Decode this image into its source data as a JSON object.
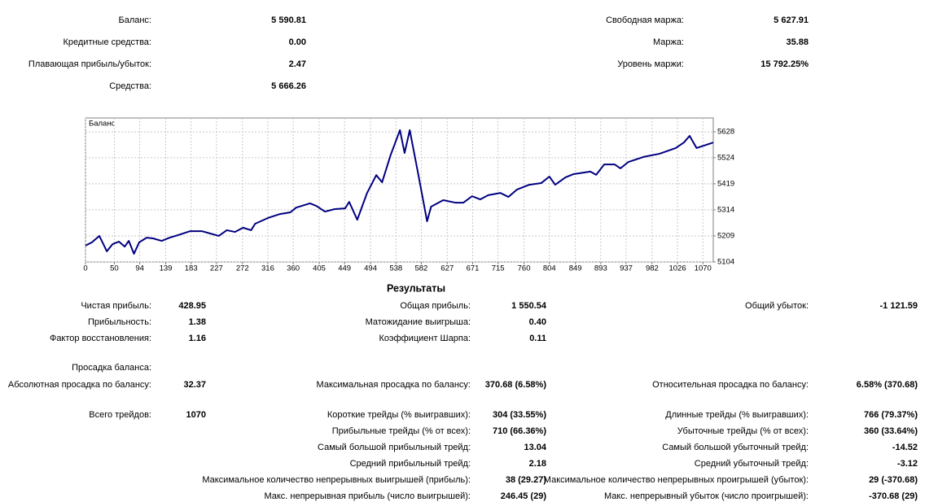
{
  "summary": {
    "left": [
      {
        "label": "Баланс:",
        "value": "5 590.81"
      },
      {
        "label": "Кредитные средства:",
        "value": "0.00"
      },
      {
        "label": "Плавающая прибыль/убыток:",
        "value": "2.47"
      },
      {
        "label": "Средства:",
        "value": "5 666.26"
      }
    ],
    "right": [
      {
        "label": "Свободная маржа:",
        "value": "5 627.91"
      },
      {
        "label": "Маржа:",
        "value": "35.88"
      },
      {
        "label": "Уровень маржи:",
        "value": "15 792.25%"
      }
    ]
  },
  "chart_data": {
    "type": "line",
    "title": "Баланс",
    "x": [
      0,
      11,
      24,
      37,
      47,
      58,
      68,
      75,
      84,
      93,
      106,
      117,
      132,
      146,
      160,
      181,
      202,
      231,
      245,
      259,
      273,
      287,
      294,
      316,
      337,
      355,
      365,
      389,
      400,
      415,
      432,
      450,
      457,
      471,
      488,
      504,
      514,
      529,
      545,
      553,
      562,
      577,
      592,
      599,
      620,
      641,
      655,
      670,
      684,
      698,
      719,
      733,
      748,
      769,
      790,
      804,
      814,
      832,
      846,
      875,
      885,
      899,
      917,
      927,
      941,
      967,
      995,
      1023,
      1037,
      1047,
      1059,
      1088
    ],
    "series": [
      {
        "name": "Баланс",
        "color": "#000080",
        "values": [
          5170,
          5183,
          5209,
          5147,
          5176,
          5186,
          5166,
          5189,
          5137,
          5183,
          5202,
          5199,
          5189,
          5202,
          5212,
          5228,
          5228,
          5209,
          5232,
          5225,
          5242,
          5232,
          5258,
          5281,
          5297,
          5304,
          5323,
          5340,
          5330,
          5307,
          5317,
          5320,
          5346,
          5274,
          5382,
          5454,
          5425,
          5536,
          5635,
          5543,
          5635,
          5454,
          5268,
          5327,
          5353,
          5343,
          5343,
          5369,
          5356,
          5373,
          5382,
          5366,
          5396,
          5415,
          5422,
          5448,
          5415,
          5445,
          5458,
          5468,
          5455,
          5497,
          5497,
          5481,
          5507,
          5527,
          5540,
          5563,
          5585,
          5612,
          5563,
          5585
        ]
      }
    ],
    "xlim": [
      0,
      1088
    ],
    "ylim": [
      5104,
      5684
    ],
    "xticks": [
      0,
      50,
      94,
      139,
      183,
      227,
      272,
      316,
      360,
      405,
      449,
      494,
      538,
      582,
      627,
      671,
      715,
      760,
      804,
      849,
      893,
      937,
      982,
      1026,
      1070
    ],
    "yticks": [
      5104,
      5209,
      5314,
      5419,
      5524,
      5628
    ],
    "grid": true
  },
  "results": {
    "title": "Результаты",
    "left": [
      {
        "label": "Чистая прибыль:",
        "value": "428.95"
      },
      {
        "label": "Прибыльность:",
        "value": "1.38"
      },
      {
        "label": "Фактор восстановления:",
        "value": "1.16"
      },
      {
        "label": "Просадка баланса:"
      },
      {
        "label": "Абсолютная просадка по балансу:",
        "value": "32.37"
      },
      {
        "label": "Всего трейдов:",
        "value": "1070"
      }
    ],
    "middle": [
      {
        "label": "Общая прибыль:",
        "value": "1 550.54"
      },
      {
        "label": "Матожидание выигрыша:",
        "value": "0.40"
      },
      {
        "label": "Коэффициент Шарпа:",
        "value": "0.11"
      },
      {
        "label": "Максимальная просадка по балансу:",
        "value": "370.68 (6.58%)"
      },
      {
        "label": "Короткие трейды (% выигравших):",
        "value": "304 (33.55%)"
      },
      {
        "label": "Прибыльные трейды (% от всех):",
        "value": "710 (66.36%)"
      },
      {
        "label": "Самый большой прибыльный трейд:",
        "value": "13.04"
      },
      {
        "label": "Средний прибыльный трейд:",
        "value": "2.18"
      },
      {
        "label": "Максимальное количество непрерывных выигрышей (прибыль):",
        "value": "38 (29.27)"
      },
      {
        "label": "Макс. непрерывная прибыль (число выигрышей):",
        "value": "246.45 (29)"
      }
    ],
    "right": [
      {
        "label": "Общий убыток:",
        "value": "-1 121.59"
      },
      {
        "label": "Относительная просадка по балансу:",
        "value": "6.58% (370.68)"
      },
      {
        "label": "Длинные трейды (% выигравших):",
        "value": "766 (79.37%)"
      },
      {
        "label": "Убыточные трейды (% от всех):",
        "value": "360 (33.64%)"
      },
      {
        "label": "Самый большой убыточный трейд:",
        "value": "-14.52"
      },
      {
        "label": "Средний убыточный трейд:",
        "value": "-3.12"
      },
      {
        "label": "Максимальное количество непрерывных проигрышей (убыток):",
        "value": "29 (-370.68)"
      },
      {
        "label": "Макс. непрерывный убыток (число проигрышей):",
        "value": "-370.68 (29)"
      }
    ]
  }
}
